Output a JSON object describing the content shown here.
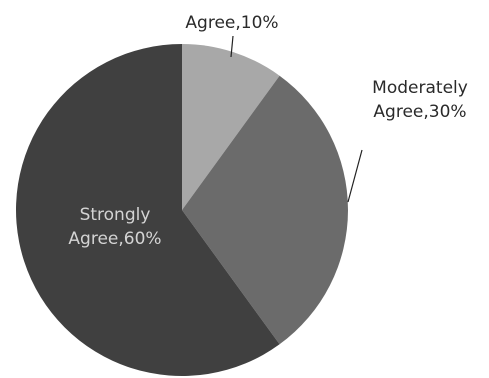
{
  "chart_data": {
    "type": "pie",
    "slices": [
      {
        "label_line1": "",
        "label_line2": "Agree,10%",
        "value": 10,
        "color": "#a8a8a8",
        "label_color": "#2a2a2a",
        "leader": true
      },
      {
        "label_line1": "Moderately",
        "label_line2": "Agree,30%",
        "value": 30,
        "color": "#6b6b6b",
        "label_color": "#2a2a2a",
        "leader": true
      },
      {
        "label_line1": "Strongly",
        "label_line2": "Agree,60%",
        "value": 60,
        "color": "#404040",
        "label_color": "#d4d4d4",
        "leader": false
      }
    ],
    "start": "12 o'clock",
    "direction": "clockwise"
  }
}
